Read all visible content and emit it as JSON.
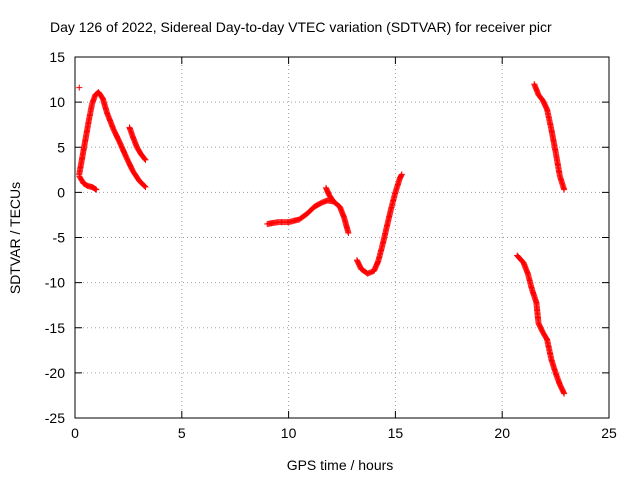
{
  "chart_data": {
    "type": "scatter",
    "title": "Day 126 of 2022, Sidereal Day-to-day VTEC variation (SDTVAR) for receiver picr",
    "xlabel": "GPS time / hours",
    "ylabel": "SDTVAR / TECUs",
    "xlim": [
      0,
      25
    ],
    "ylim": [
      -25,
      15
    ],
    "xticks": [
      0,
      5,
      10,
      15,
      20,
      25
    ],
    "yticks": [
      -25,
      -20,
      -15,
      -10,
      -5,
      0,
      5,
      10,
      15
    ],
    "grid": true,
    "legend": "none",
    "marker": "plus",
    "color": "#ff0000",
    "segments": [
      [
        [
          0.2,
          11.6
        ]
      ],
      [
        [
          0.2,
          1.8
        ],
        [
          0.4,
          1.0
        ],
        [
          0.6,
          0.7
        ],
        [
          0.8,
          0.6
        ],
        [
          1.0,
          0.3
        ]
      ],
      [
        [
          0.2,
          2.0
        ],
        [
          0.35,
          4.0
        ],
        [
          0.5,
          6.0
        ],
        [
          0.65,
          8.0
        ],
        [
          0.8,
          9.8
        ],
        [
          0.95,
          10.8
        ],
        [
          1.1,
          11.1
        ],
        [
          1.3,
          10.4
        ],
        [
          1.5,
          8.8
        ],
        [
          1.8,
          7.0
        ],
        [
          2.1,
          5.5
        ],
        [
          2.4,
          3.9
        ],
        [
          2.7,
          2.4
        ],
        [
          3.0,
          1.3
        ],
        [
          3.3,
          0.6
        ]
      ],
      [
        [
          2.55,
          7.2
        ],
        [
          2.7,
          6.2
        ],
        [
          2.9,
          5.0
        ],
        [
          3.1,
          4.2
        ],
        [
          3.3,
          3.6
        ]
      ],
      [
        [
          9.0,
          -3.5
        ],
        [
          9.5,
          -3.3
        ],
        [
          10.0,
          -3.3
        ],
        [
          10.5,
          -3.0
        ],
        [
          10.9,
          -2.3
        ],
        [
          11.2,
          -1.6
        ],
        [
          11.5,
          -1.2
        ],
        [
          11.8,
          -0.9
        ],
        [
          12.1,
          -1.0
        ],
        [
          12.4,
          -1.6
        ],
        [
          12.6,
          -2.8
        ],
        [
          12.8,
          -4.5
        ]
      ],
      [
        [
          11.75,
          0.5
        ],
        [
          11.9,
          -0.3
        ],
        [
          12.1,
          -1.0
        ]
      ],
      [
        [
          13.2,
          -7.5
        ],
        [
          13.4,
          -8.5
        ],
        [
          13.7,
          -9.0
        ],
        [
          14.0,
          -8.7
        ],
        [
          14.2,
          -7.6
        ],
        [
          14.4,
          -5.8
        ],
        [
          14.6,
          -3.8
        ],
        [
          14.8,
          -1.8
        ],
        [
          15.0,
          0.0
        ],
        [
          15.2,
          1.5
        ],
        [
          15.3,
          2.0
        ]
      ],
      [
        [
          21.5,
          12.0
        ],
        [
          21.7,
          10.8
        ],
        [
          21.9,
          10.2
        ],
        [
          22.1,
          9.2
        ],
        [
          22.3,
          7.0
        ],
        [
          22.5,
          4.5
        ],
        [
          22.7,
          1.8
        ],
        [
          22.9,
          0.3
        ]
      ],
      [
        [
          20.7,
          -7.0
        ],
        [
          21.0,
          -7.8
        ],
        [
          21.2,
          -9.0
        ],
        [
          21.4,
          -10.8
        ],
        [
          21.6,
          -12.2
        ],
        [
          21.7,
          -14.5
        ],
        [
          21.9,
          -15.5
        ],
        [
          22.1,
          -16.3
        ],
        [
          22.3,
          -18.5
        ],
        [
          22.5,
          -20.0
        ],
        [
          22.7,
          -21.3
        ],
        [
          22.9,
          -22.3
        ]
      ]
    ]
  }
}
